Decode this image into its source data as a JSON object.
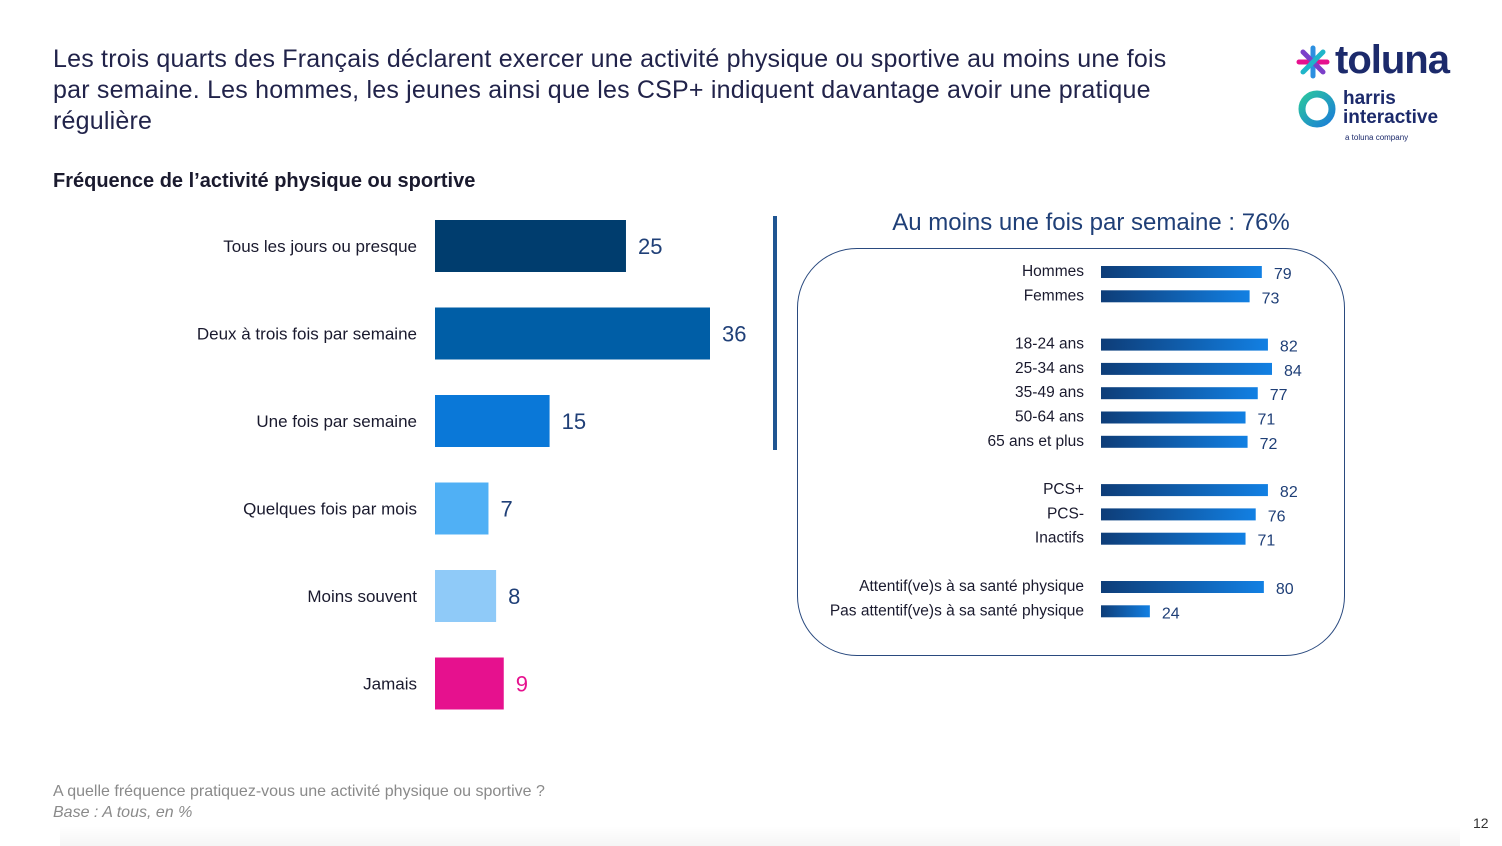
{
  "headline": {
    "line1": "Les trois quarts des Français déclarent exercer une activité physique ou sportive au moins une fois",
    "line2": "par semaine. Les hommes, les jeunes ainsi que les CSP+ indiquent davantage avoir une pratique",
    "line3": "régulière"
  },
  "logo": {
    "brand1": "toluna",
    "brand2_line1": "harris",
    "brand2_line2": "interactive",
    "tagline": "a toluna company"
  },
  "colors": {
    "dark_navy": "#003d6e",
    "mid_blue": "#005ea6",
    "bright_blue": "#0a78d8",
    "light_blue": "#50b0f5",
    "pale_blue": "#8fcaf8",
    "magenta": "#e6118e",
    "gradient_start": "#0e3d78",
    "gradient_end": "#1280e3"
  },
  "chart_data": [
    {
      "type": "bar",
      "orientation": "horizontal",
      "title": "Fréquence de l’activité physique ou sportive",
      "categories": [
        "Tous les jours ou presque",
        "Deux à trois fois par semaine",
        "Une fois par semaine",
        "Quelques fois par mois",
        "Moins souvent",
        "Jamais"
      ],
      "values": [
        25,
        36,
        15,
        7,
        8,
        9
      ],
      "bar_colors": [
        "#003d6e",
        "#005ea6",
        "#0a78d8",
        "#50b0f5",
        "#8fcaf8",
        "#e6118e"
      ],
      "label_colors": [
        "#1f3f77",
        "#1f3f77",
        "#1f3f77",
        "#1f3f77",
        "#1f3f77",
        "#e6118e"
      ],
      "xlim": [
        0,
        36
      ],
      "grid": false
    },
    {
      "type": "bar",
      "orientation": "horizontal",
      "title": "Au moins une fois par semaine : 76%",
      "groups": [
        {
          "categories": [
            "Hommes",
            "Femmes"
          ],
          "values": [
            79,
            73
          ]
        },
        {
          "categories": [
            "18-24 ans",
            "25-34 ans",
            "35-49 ans",
            "50-64 ans",
            "65 ans et plus"
          ],
          "values": [
            82,
            84,
            77,
            71,
            72
          ]
        },
        {
          "categories": [
            "PCS+",
            "PCS-",
            "Inactifs"
          ],
          "values": [
            82,
            76,
            71
          ]
        },
        {
          "categories": [
            "Attentif(ve)s à sa santé physique",
            "Pas attentif(ve)s à sa santé physique"
          ],
          "values": [
            80,
            24
          ]
        }
      ],
      "xlim": [
        0,
        84
      ],
      "grid": false
    }
  ],
  "footer": {
    "question": "A quelle fréquence pratiquez-vous une activité physique ou sportive ?",
    "base": "Base : A tous, en %",
    "page_number": "12"
  }
}
